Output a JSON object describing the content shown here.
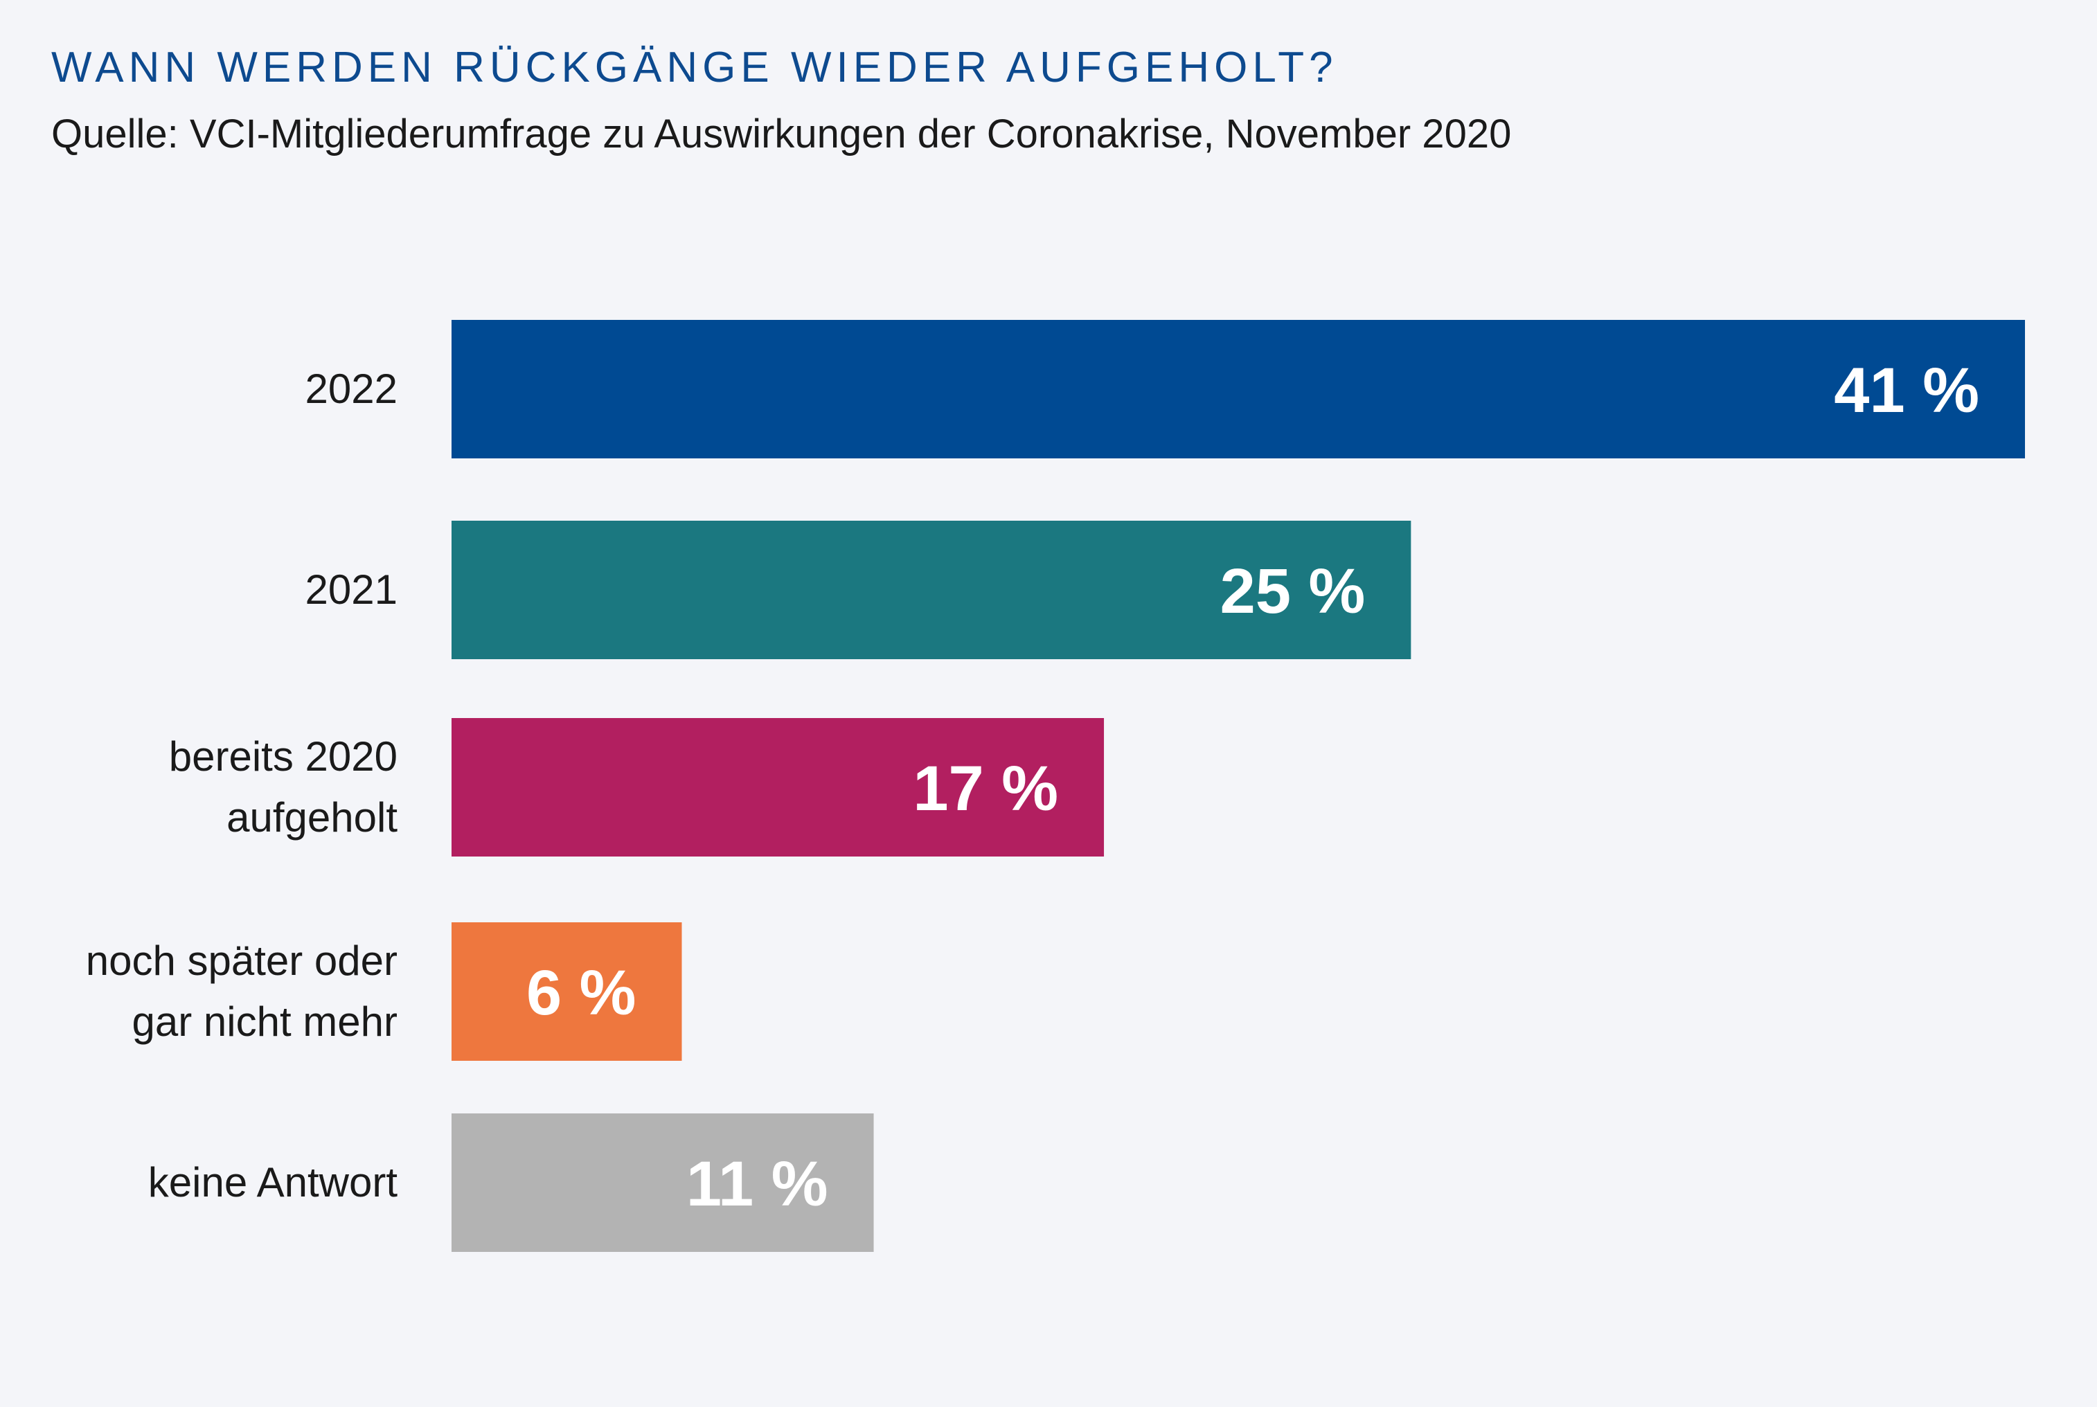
{
  "header": {
    "title": "WANN WERDEN RÜCKGÄNGE WIEDER AUFGEHOLT?",
    "subtitle": "Quelle: VCI-Mitgliederumfrage zu Auswirkungen der Coronakrise, November 2020"
  },
  "chart_data": {
    "type": "bar",
    "orientation": "horizontal",
    "title": "WANN WERDEN RÜCKGÄNGE WIEDER AUFGEHOLT?",
    "subtitle": "Quelle: VCI-Mitgliederumfrage zu Auswirkungen der Coronakrise, November 2020",
    "xlabel": "",
    "ylabel": "",
    "unit": "%",
    "grid": false,
    "legend": "none",
    "xlim": [
      0,
      41
    ],
    "categories": [
      [
        "2022"
      ],
      [
        "2021"
      ],
      [
        "bereits 2020",
        "aufgeholt"
      ],
      [
        "noch später oder",
        "gar nicht mehr"
      ],
      [
        "keine Antwort"
      ]
    ],
    "values": [
      41,
      25,
      17,
      6,
      11
    ],
    "value_labels": [
      "41 %",
      "25 %",
      "17 %",
      "6 %",
      "11 %"
    ],
    "colors": [
      "#004a93",
      "#1b7880",
      "#b21f60",
      "#ee773e",
      "#b3b3b3"
    ]
  }
}
